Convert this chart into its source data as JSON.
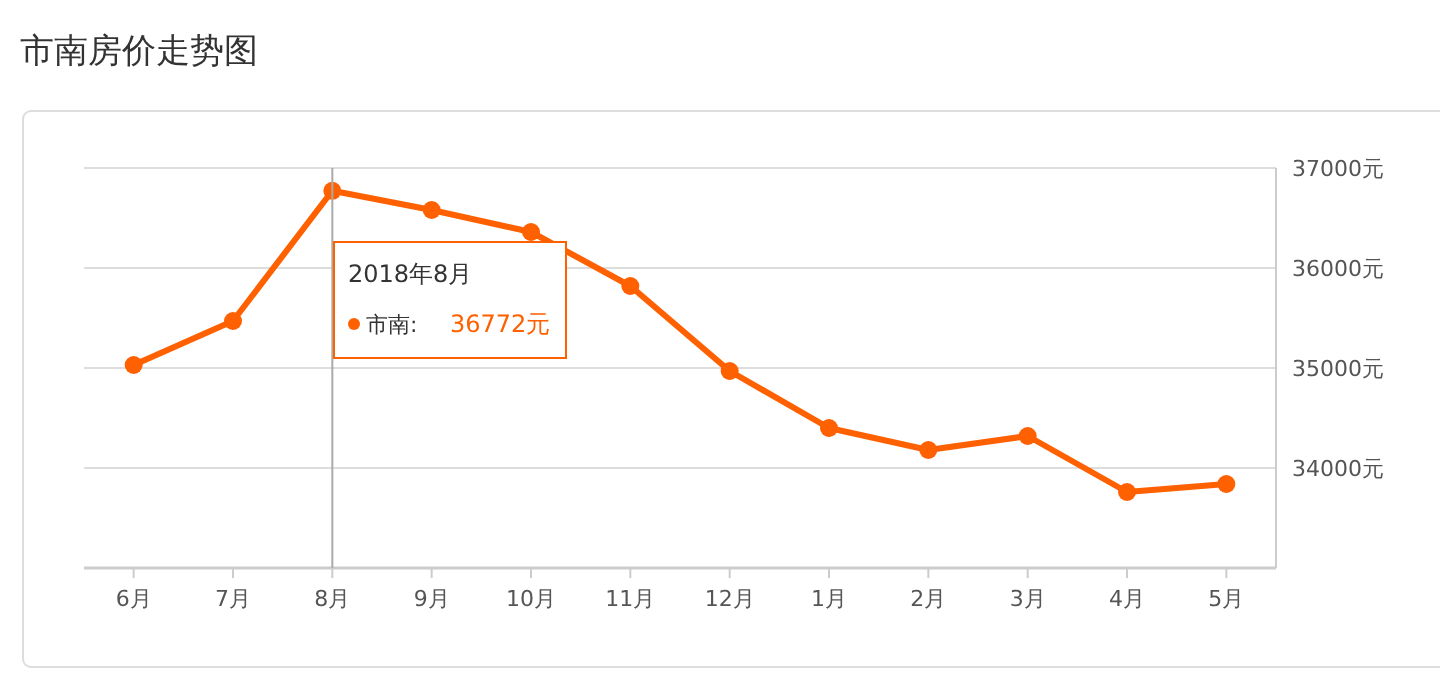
{
  "chart_data": {
    "type": "line",
    "title": "市南房价走势图",
    "categories": [
      "6月",
      "7月",
      "8月",
      "9月",
      "10月",
      "11月",
      "12月",
      "1月",
      "2月",
      "3月",
      "4月",
      "5月"
    ],
    "series": [
      {
        "name": "市南:",
        "color": "#ff6000",
        "values": [
          35030,
          35470,
          36772,
          36580,
          36360,
          35820,
          34970,
          34400,
          34180,
          34320,
          33760,
          33840
        ]
      }
    ],
    "legend_title": "2018年8月",
    "ylim": [
      33000,
      37000
    ],
    "yticks": [
      {
        "value": 34000,
        "label": "34000元"
      },
      {
        "value": 35000,
        "label": "35000元"
      },
      {
        "value": 36000,
        "label": "36000元"
      },
      {
        "value": 37000,
        "label": "37000元"
      }
    ],
    "annotations": [
      "36772元"
    ],
    "ref_lines": [
      {
        "axis": "x",
        "value": "8月",
        "color": "#aaaaaa"
      }
    ],
    "grid": "y",
    "marker": "circle",
    "line_style": "solid",
    "legend": "top"
  }
}
